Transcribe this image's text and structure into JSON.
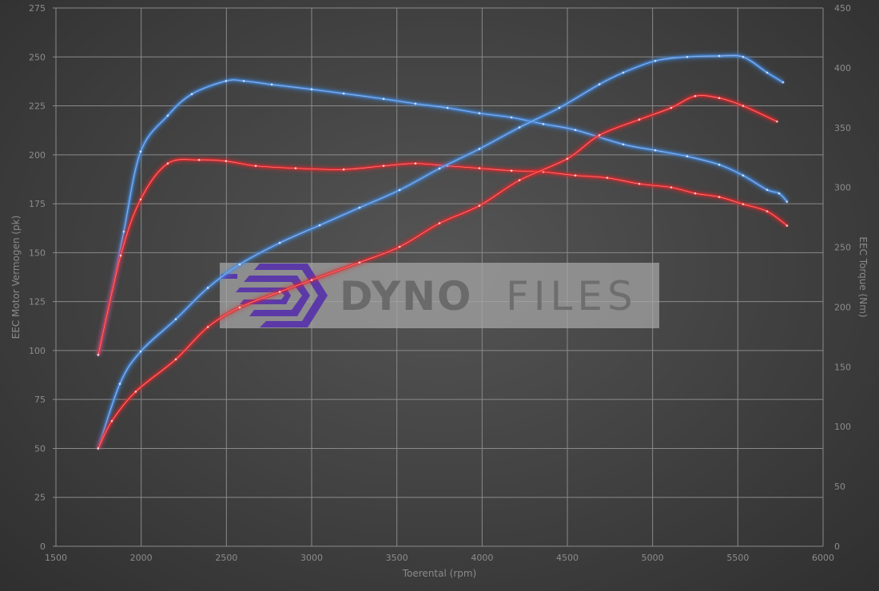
{
  "chart_data": {
    "type": "line",
    "xlabel": "Toerental (rpm)",
    "ylabel_left": "EEC Motor Vermogen (pk)",
    "ylabel_right": "EEC Torque (Nm)",
    "xlim": [
      1500,
      6000
    ],
    "ylim_left": [
      0,
      275
    ],
    "ylim_right": [
      0,
      450
    ],
    "x_ticks": [
      1500,
      2000,
      2500,
      3000,
      3500,
      4000,
      4500,
      5000,
      5500,
      6000
    ],
    "y_left_ticks": [
      0,
      25,
      50,
      75,
      100,
      125,
      150,
      175,
      200,
      225,
      250,
      275
    ],
    "y_right_ticks": [
      0,
      50,
      100,
      150,
      200,
      250,
      300,
      350,
      400,
      450
    ],
    "grid": true,
    "watermark": "DYNOFILES",
    "series": [
      {
        "color": "#3f8ee8",
        "axis": "right",
        "x": [
          1748,
          1828,
          1898,
          1997,
          2156,
          2297,
          2498,
          2602,
          2766,
          3000,
          3188,
          3422,
          3609,
          3797,
          3984,
          4172,
          4359,
          4547,
          4828,
          5016,
          5203,
          5391,
          5531,
          5672,
          5742,
          5789
        ],
        "y": [
          160,
          213,
          263,
          330,
          360,
          378,
          389,
          389,
          386,
          382,
          378.5,
          374,
          370,
          366.5,
          362,
          358.5,
          353,
          348,
          336,
          331,
          326,
          319,
          310,
          298,
          295,
          288
        ]
      },
      {
        "color": "#e8262a",
        "axis": "right",
        "x": [
          1748,
          1880,
          1997,
          2156,
          2340,
          2498,
          2672,
          2906,
          3188,
          3422,
          3609,
          3797,
          3984,
          4172,
          4359,
          4547,
          4734,
          4922,
          5109,
          5250,
          5391,
          5531,
          5672,
          5789
        ],
        "y": [
          160,
          243,
          290,
          320,
          323,
          322,
          318,
          316,
          315,
          318,
          320,
          318,
          316,
          314,
          313,
          310,
          308,
          303,
          300,
          295,
          292,
          286,
          280,
          268
        ]
      },
      {
        "color": "#3f8ee8",
        "axis": "left",
        "x": [
          1748,
          1875,
          1997,
          2203,
          2391,
          2578,
          2813,
          3047,
          3281,
          3516,
          3750,
          3984,
          4219,
          4453,
          4688,
          4828,
          5016,
          5203,
          5391,
          5531,
          5672,
          5766
        ],
        "y": [
          50,
          83,
          99.5,
          116,
          132,
          144,
          155,
          164,
          173,
          182,
          193,
          203,
          214,
          224,
          236,
          242,
          248,
          250,
          250.5,
          250,
          242,
          237
        ]
      },
      {
        "color": "#e8262a",
        "axis": "left",
        "x": [
          1748,
          1828,
          1968,
          2203,
          2391,
          2578,
          2813,
          3000,
          3281,
          3516,
          3750,
          3984,
          4219,
          4500,
          4688,
          4922,
          5109,
          5250,
          5391,
          5531,
          5730
        ],
        "y": [
          50,
          64,
          79,
          95.5,
          112,
          122,
          130,
          136,
          145,
          153,
          165,
          174,
          187,
          198,
          210,
          218,
          224,
          230,
          229,
          225,
          217
        ]
      }
    ]
  }
}
